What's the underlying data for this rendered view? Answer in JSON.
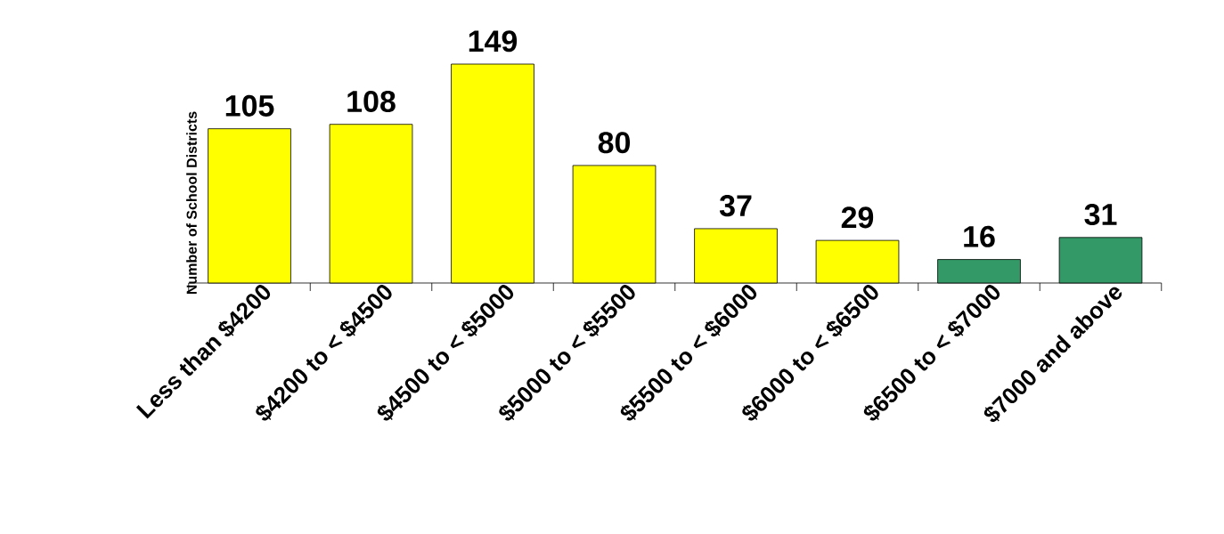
{
  "chart_data": {
    "type": "bar",
    "ylabel": "Number of School Districts",
    "categories": [
      "Less than $4200",
      "$4200 to < $4500",
      "$4500 to < $5000",
      "$5000 to < $5500",
      "$5500 to < $6000",
      "$6000 to < $6500",
      "$6500 to < $7000",
      "$7000 and above"
    ],
    "values": [
      105,
      108,
      149,
      80,
      37,
      29,
      16,
      31
    ],
    "colors": [
      "#ffff00",
      "#ffff00",
      "#ffff00",
      "#ffff00",
      "#ffff00",
      "#ffff00",
      "#339966",
      "#339966"
    ],
    "data_labels": true
  }
}
